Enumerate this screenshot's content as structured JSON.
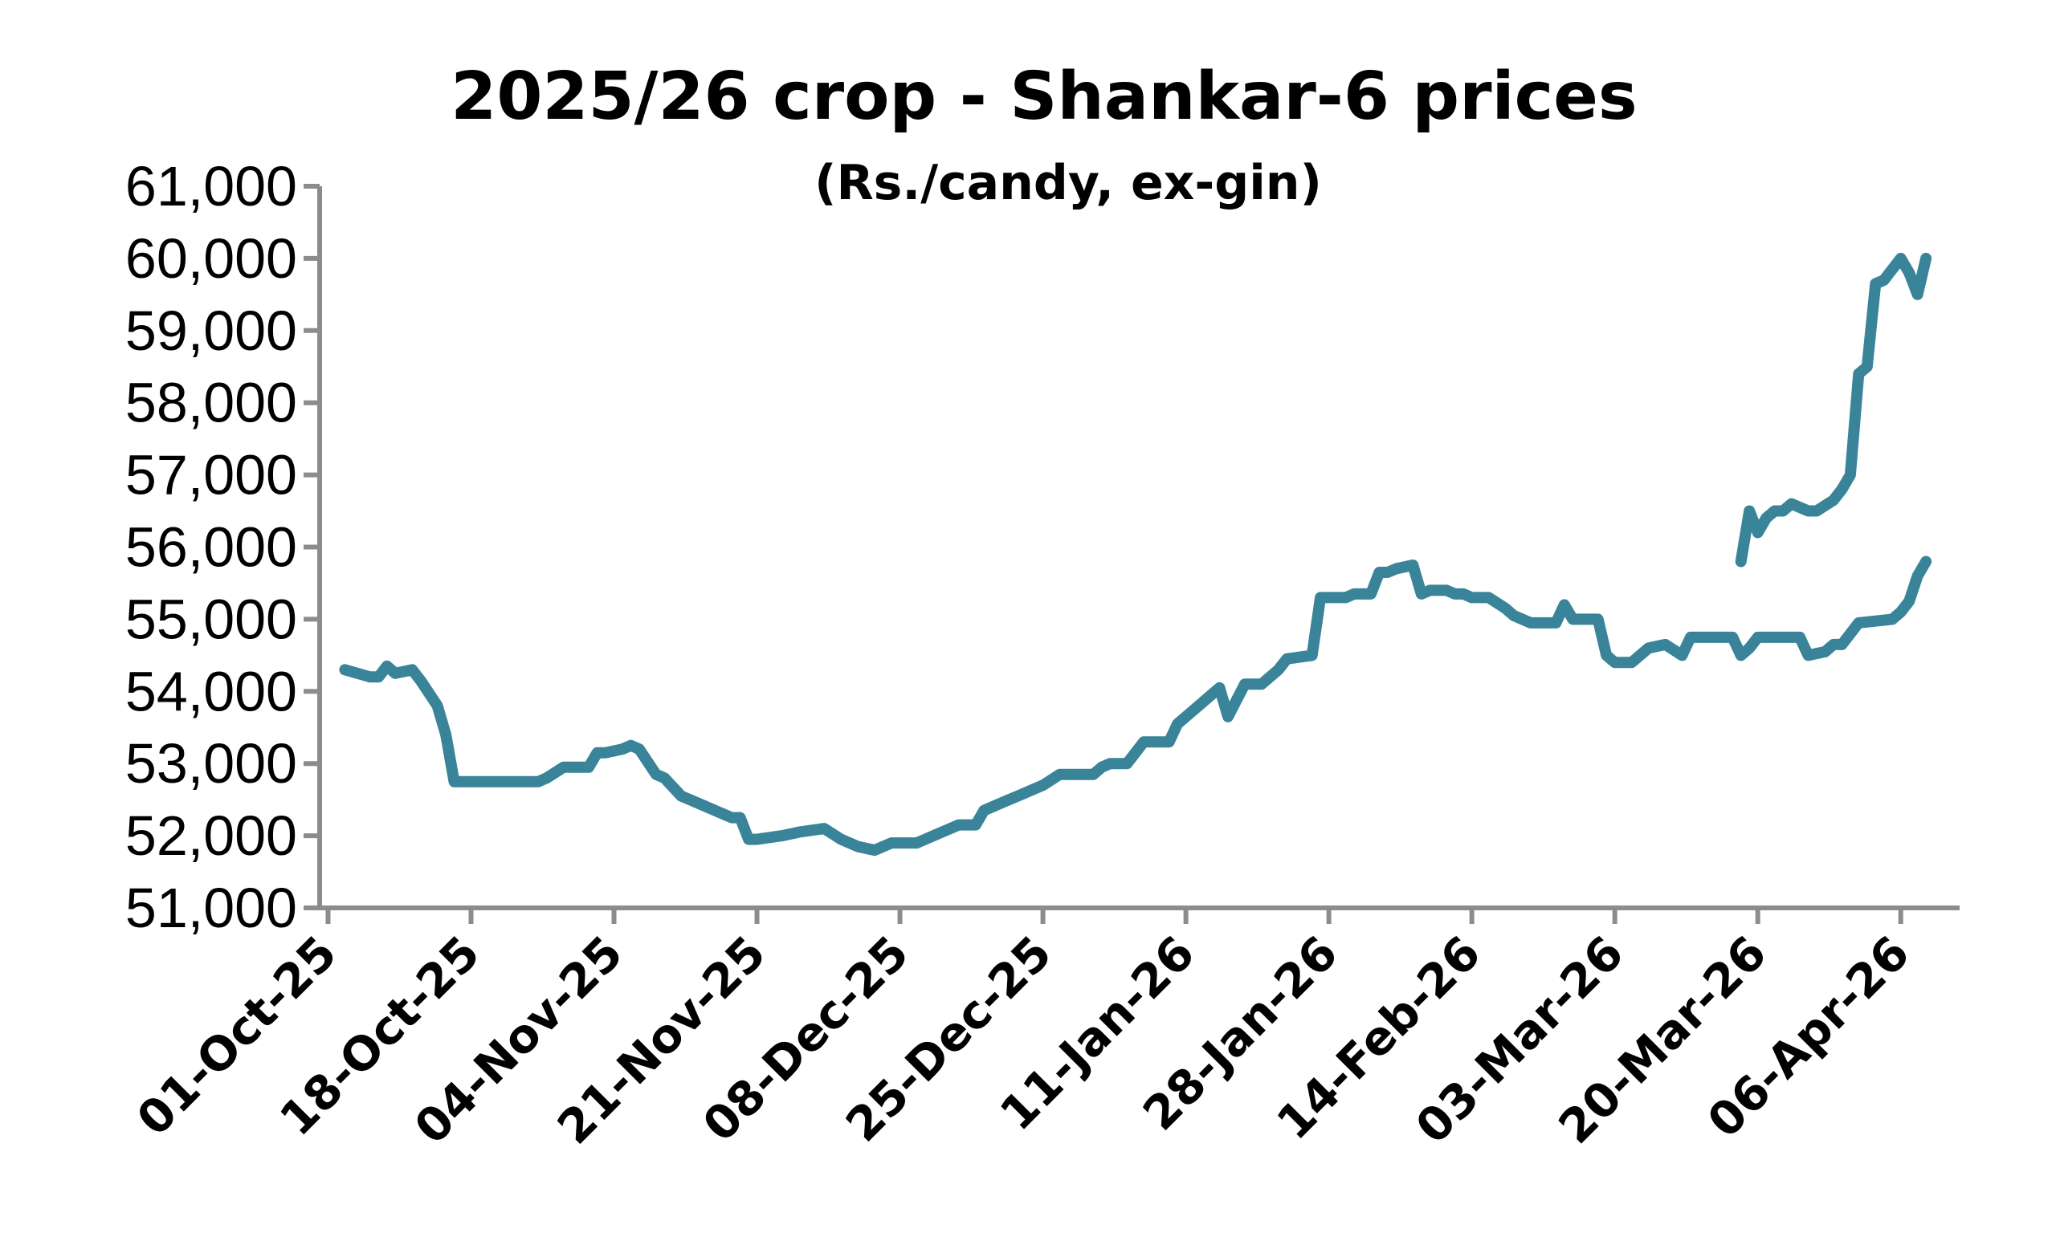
{
  "chart_data": {
    "type": "line",
    "title": "2025/26 crop - Shankar-6 prices",
    "subtitle": "(Rs./candy, ex-gin)",
    "xlabel": "",
    "ylabel": "",
    "ylim": [
      51000,
      61000
    ],
    "yticks": [
      "51,000",
      "52,000",
      "53,000",
      "54,000",
      "55,000",
      "56,000",
      "57,000",
      "58,000",
      "59,000",
      "60,000",
      "61,000"
    ],
    "xticks": [
      "01-Oct-25",
      "18-Oct-25",
      "04-Nov-25",
      "21-Nov-25",
      "08-Dec-25",
      "25-Dec-25",
      "11-Jan-26",
      "28-Jan-26",
      "14-Feb-26",
      "03-Mar-26",
      "20-Mar-26",
      "06-Apr-26"
    ],
    "grid": false,
    "legend": "none",
    "color": "#3a8499",
    "series": [
      {
        "x": [
          "2025-10-03",
          "2025-10-06",
          "2025-10-07",
          "2025-10-08",
          "2025-10-09",
          "2025-10-11",
          "2025-10-12",
          "2025-10-14",
          "2025-10-15",
          "2025-10-16",
          "2025-10-17",
          "2025-10-22",
          "2025-10-24",
          "2025-10-26",
          "2025-10-27",
          "2025-10-29",
          "2025-10-30",
          "2025-11-01",
          "2025-11-02",
          "2025-11-03",
          "2025-11-05",
          "2025-11-06",
          "2025-11-07",
          "2025-11-09",
          "2025-11-10",
          "2025-11-12",
          "2025-11-13",
          "2025-11-14",
          "2025-11-18",
          "2025-11-19",
          "2025-11-20",
          "2025-11-21",
          "2025-11-24",
          "2025-11-26",
          "2025-11-29",
          "2025-12-01",
          "2025-12-02",
          "2025-12-03",
          "2025-12-05",
          "2025-12-06",
          "2025-12-07",
          "2025-12-09",
          "2025-12-10",
          "2025-12-12",
          "2025-12-13",
          "2025-12-15",
          "2025-12-17",
          "2025-12-18",
          "2025-12-20",
          "2025-12-21",
          "2025-12-22",
          "2025-12-24",
          "2025-12-25",
          "2025-12-27",
          "2025-12-28",
          "2025-12-29",
          "2025-12-31",
          "2026-01-01",
          "2026-01-02",
          "2026-01-04",
          "2026-01-06",
          "2026-01-07",
          "2026-01-09",
          "2026-01-10",
          "2026-01-12",
          "2026-01-14",
          "2026-01-15",
          "2026-01-16",
          "2026-01-18",
          "2026-01-20",
          "2026-01-22",
          "2026-01-23",
          "2026-01-26",
          "2026-01-27",
          "2026-01-29",
          "2026-01-30",
          "2026-01-31",
          "2026-02-02",
          "2026-02-03",
          "2026-02-04",
          "2026-02-05",
          "2026-02-07",
          "2026-02-08",
          "2026-02-09",
          "2026-02-11",
          "2026-02-12",
          "2026-02-13",
          "2026-02-14",
          "2026-02-16",
          "2026-02-18",
          "2026-02-19",
          "2026-02-21",
          "2026-02-24",
          "2026-02-25",
          "2026-02-26",
          "2026-03-01",
          "2026-03-02",
          "2026-03-03",
          "2026-03-05",
          "2026-03-06",
          "2026-03-07",
          "2026-03-09",
          "2026-03-11",
          "2026-03-12",
          "2026-03-13",
          "2026-03-15",
          "2026-03-17",
          "2026-03-18",
          "2026-03-19",
          "2026-03-20",
          "2026-03-21",
          "2026-03-23",
          "2026-03-24",
          "2026-03-25",
          "2026-03-26",
          "2026-03-28",
          "2026-03-29",
          "2026-03-30",
          "2026-03-31",
          "2026-04-01",
          "2026-04-05",
          "2026-04-06",
          "2026-04-07",
          "2026-04-08",
          "2026-04-09"
        ],
        "y": [
          54300,
          54200,
          54200,
          54350,
          54250,
          54300,
          54150,
          53800,
          53400,
          52750,
          52750,
          52750,
          52750,
          52750,
          52800,
          52950,
          52950,
          52950,
          53150,
          53150,
          53200,
          53250,
          53200,
          52850,
          52800,
          52550,
          52500,
          52450,
          52250,
          52250,
          51950,
          51950,
          52000,
          52050,
          52100,
          51950,
          51900,
          51850,
          51800,
          51850,
          51900,
          51900,
          51900,
          52000,
          52050,
          52150,
          52150,
          52350,
          52450,
          52500,
          52550,
          52650,
          52700,
          52850,
          52850,
          52850,
          52850,
          52950,
          53000,
          53000,
          53300,
          53300,
          53300,
          53550,
          53750,
          53950,
          54050,
          53650,
          54100,
          54100,
          54300,
          54450,
          54500,
          55300,
          55300,
          55300,
          55350,
          55350,
          55650,
          55650,
          55700,
          55750,
          55350,
          55400,
          55400,
          55350,
          55350,
          55300,
          55300,
          55150,
          55050,
          54950,
          54950,
          55200,
          55000,
          55000,
          54500,
          54400,
          54400,
          54500,
          54600,
          54650,
          54500,
          54750,
          54750,
          54750,
          54750,
          54500,
          54600,
          54750,
          54750,
          54750,
          54750,
          54750,
          54500,
          54550,
          54650,
          54650,
          54800,
          54950,
          55000,
          55100,
          55250,
          55600,
          55800
        ]
      },
      {
        "x": [
          "2026-03-18",
          "2026-03-19",
          "2026-03-20",
          "2026-03-21",
          "2026-03-22",
          "2026-03-23",
          "2026-03-24",
          "2026-03-25",
          "2026-03-26",
          "2026-03-27",
          "2026-03-29",
          "2026-03-30",
          "2026-03-31",
          "2026-04-01",
          "2026-04-02",
          "2026-04-03",
          "2026-04-04",
          "2026-04-05",
          "2026-04-06",
          "2026-04-07",
          "2026-04-08",
          "2026-04-09"
        ],
        "y": [
          55800,
          56500,
          56200,
          56400,
          56500,
          56500,
          56600,
          56550,
          56500,
          56500,
          56650,
          56800,
          57000,
          58400,
          58500,
          59650,
          59700,
          59850,
          60000,
          59800,
          59500,
          60000
        ]
      }
    ]
  }
}
